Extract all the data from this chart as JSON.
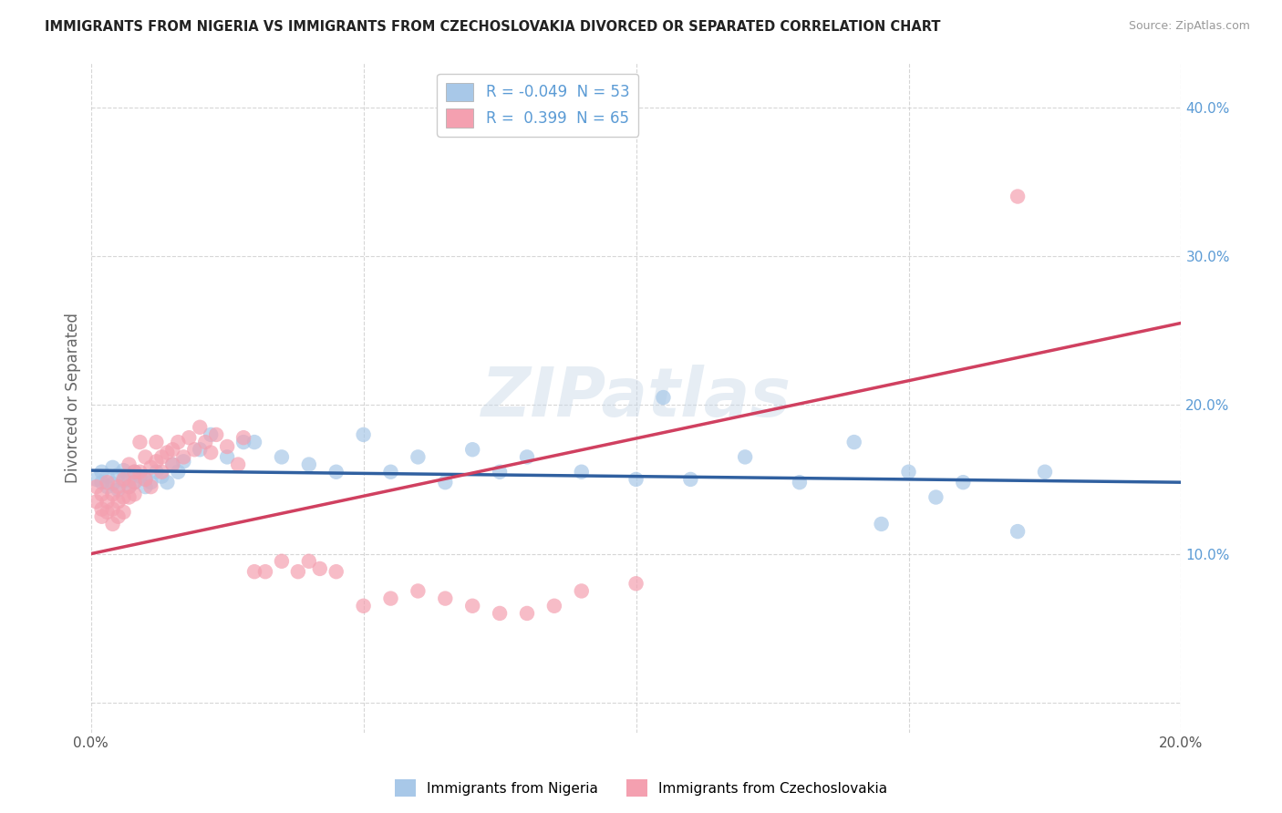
{
  "title": "IMMIGRANTS FROM NIGERIA VS IMMIGRANTS FROM CZECHOSLOVAKIA DIVORCED OR SEPARATED CORRELATION CHART",
  "source": "Source: ZipAtlas.com",
  "ylabel": "Divorced or Separated",
  "legend_blue_r": "-0.049",
  "legend_blue_n": "53",
  "legend_pink_r": "0.399",
  "legend_pink_n": "65",
  "blue_color": "#a8c8e8",
  "pink_color": "#f4a0b0",
  "blue_line_color": "#3060a0",
  "pink_line_color": "#d04060",
  "xlim": [
    0.0,
    0.2
  ],
  "ylim": [
    -0.02,
    0.43
  ],
  "background_color": "#ffffff",
  "grid_color": "#cccccc",
  "watermark_text": "ZIPatlas",
  "legend_labels_bottom": [
    "Immigrants from Nigeria",
    "Immigrants from Czechoslovakia"
  ],
  "blue_scatter_x": [
    0.001,
    0.002,
    0.002,
    0.003,
    0.003,
    0.004,
    0.004,
    0.005,
    0.005,
    0.006,
    0.006,
    0.007,
    0.007,
    0.008,
    0.008,
    0.009,
    0.01,
    0.01,
    0.011,
    0.012,
    0.013,
    0.014,
    0.015,
    0.016,
    0.017,
    0.02,
    0.022,
    0.025,
    0.028,
    0.03,
    0.035,
    0.04,
    0.045,
    0.05,
    0.055,
    0.06,
    0.065,
    0.07,
    0.075,
    0.08,
    0.09,
    0.1,
    0.105,
    0.11,
    0.12,
    0.13,
    0.14,
    0.145,
    0.15,
    0.155,
    0.16,
    0.17,
    0.175
  ],
  "blue_scatter_y": [
    0.15,
    0.148,
    0.155,
    0.145,
    0.152,
    0.158,
    0.147,
    0.153,
    0.143,
    0.149,
    0.156,
    0.145,
    0.15,
    0.148,
    0.155,
    0.152,
    0.15,
    0.145,
    0.148,
    0.155,
    0.152,
    0.148,
    0.16,
    0.155,
    0.162,
    0.17,
    0.18,
    0.165,
    0.175,
    0.175,
    0.165,
    0.16,
    0.155,
    0.18,
    0.155,
    0.165,
    0.148,
    0.17,
    0.155,
    0.165,
    0.155,
    0.15,
    0.205,
    0.15,
    0.165,
    0.148,
    0.175,
    0.12,
    0.155,
    0.138,
    0.148,
    0.115,
    0.155
  ],
  "pink_scatter_x": [
    0.001,
    0.001,
    0.002,
    0.002,
    0.002,
    0.003,
    0.003,
    0.003,
    0.004,
    0.004,
    0.004,
    0.005,
    0.005,
    0.005,
    0.006,
    0.006,
    0.006,
    0.007,
    0.007,
    0.007,
    0.008,
    0.008,
    0.008,
    0.009,
    0.009,
    0.01,
    0.01,
    0.011,
    0.011,
    0.012,
    0.012,
    0.013,
    0.013,
    0.014,
    0.015,
    0.015,
    0.016,
    0.017,
    0.018,
    0.019,
    0.02,
    0.021,
    0.022,
    0.023,
    0.025,
    0.027,
    0.028,
    0.03,
    0.032,
    0.035,
    0.038,
    0.04,
    0.042,
    0.045,
    0.05,
    0.055,
    0.06,
    0.065,
    0.07,
    0.075,
    0.08,
    0.085,
    0.09,
    0.1,
    0.17
  ],
  "pink_scatter_y": [
    0.145,
    0.135,
    0.13,
    0.125,
    0.14,
    0.135,
    0.128,
    0.148,
    0.14,
    0.13,
    0.12,
    0.145,
    0.135,
    0.125,
    0.15,
    0.138,
    0.128,
    0.145,
    0.138,
    0.16,
    0.155,
    0.148,
    0.14,
    0.175,
    0.155,
    0.165,
    0.15,
    0.158,
    0.145,
    0.175,
    0.162,
    0.155,
    0.165,
    0.168,
    0.17,
    0.16,
    0.175,
    0.165,
    0.178,
    0.17,
    0.185,
    0.175,
    0.168,
    0.18,
    0.172,
    0.16,
    0.178,
    0.088,
    0.088,
    0.095,
    0.088,
    0.095,
    0.09,
    0.088,
    0.065,
    0.07,
    0.075,
    0.07,
    0.065,
    0.06,
    0.06,
    0.065,
    0.075,
    0.08,
    0.34
  ]
}
